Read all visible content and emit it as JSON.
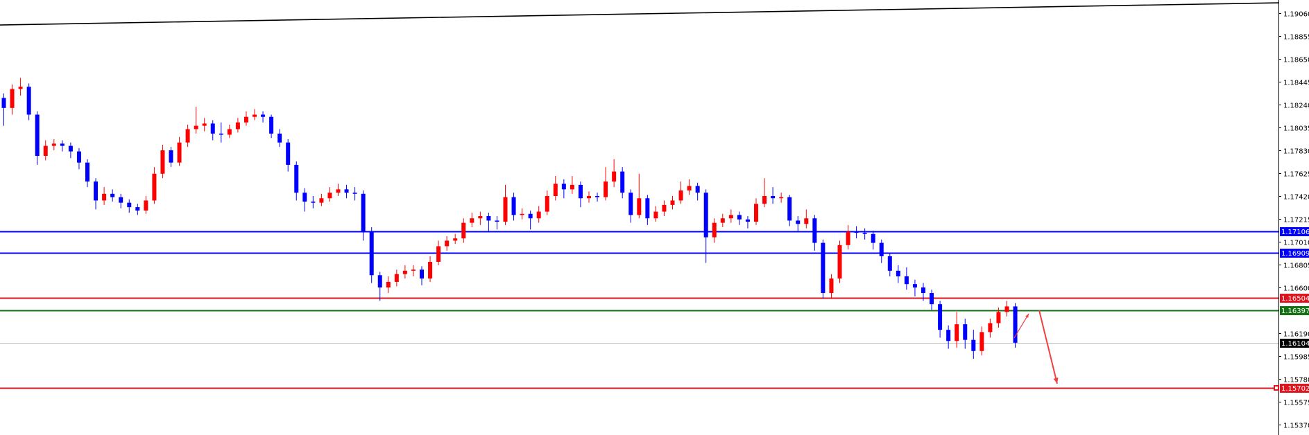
{
  "chart_data": {
    "type": "candlestick",
    "title": "",
    "xlabel": "",
    "ylabel": "",
    "ylim": [
      1.1537,
      1.1906
    ],
    "grid": false,
    "y_ticks": [
      "1.19060",
      "1.18855",
      "1.18650",
      "1.18445",
      "1.18240",
      "1.18035",
      "1.17830",
      "1.17625",
      "1.17420",
      "1.17215",
      "1.17010",
      "1.16805",
      "1.16600",
      "1.16190",
      "1.15985",
      "1.15780",
      "1.15575",
      "1.15370"
    ],
    "colors": {
      "bull": "#ff0000",
      "bear": "#0000ff",
      "doji": "#000000"
    },
    "candles": [
      [
        1.183,
        1.1834,
        1.1805,
        1.1821
      ],
      [
        1.1821,
        1.1842,
        1.1815,
        1.1838
      ],
      [
        1.1838,
        1.1848,
        1.1832,
        1.184
      ],
      [
        1.184,
        1.1843,
        1.181,
        1.1815
      ],
      [
        1.1815,
        1.1818,
        1.177,
        1.1778
      ],
      [
        1.1778,
        1.1792,
        1.1774,
        1.1787
      ],
      [
        1.1787,
        1.1793,
        1.1783,
        1.1789
      ],
      [
        1.1789,
        1.1792,
        1.1782,
        1.1787
      ],
      [
        1.1787,
        1.179,
        1.1776,
        1.1782
      ],
      [
        1.1782,
        1.1785,
        1.1766,
        1.1772
      ],
      [
        1.1772,
        1.1775,
        1.175,
        1.1755
      ],
      [
        1.1755,
        1.1758,
        1.173,
        1.1738
      ],
      [
        1.1738,
        1.175,
        1.1734,
        1.1744
      ],
      [
        1.1744,
        1.1748,
        1.1737,
        1.1741
      ],
      [
        1.1741,
        1.1744,
        1.1731,
        1.1736
      ],
      [
        1.1736,
        1.1739,
        1.1727,
        1.1732
      ],
      [
        1.1732,
        1.1735,
        1.1725,
        1.1729
      ],
      [
        1.1729,
        1.1742,
        1.1726,
        1.1738
      ],
      [
        1.1738,
        1.1768,
        1.1735,
        1.1762
      ],
      [
        1.1762,
        1.1788,
        1.1758,
        1.1783
      ],
      [
        1.1783,
        1.1786,
        1.1768,
        1.1772
      ],
      [
        1.1772,
        1.1795,
        1.1769,
        1.179
      ],
      [
        1.179,
        1.1806,
        1.1786,
        1.1802
      ],
      [
        1.1802,
        1.1822,
        1.1798,
        1.1805
      ],
      [
        1.1805,
        1.1812,
        1.18,
        1.1807
      ],
      [
        1.1807,
        1.181,
        1.1792,
        1.1798
      ],
      [
        1.1798,
        1.1808,
        1.179,
        1.1797
      ],
      [
        1.1797,
        1.1806,
        1.1794,
        1.1802
      ],
      [
        1.1802,
        1.1812,
        1.1799,
        1.1808
      ],
      [
        1.1808,
        1.1818,
        1.1805,
        1.1813
      ],
      [
        1.1813,
        1.182,
        1.181,
        1.1815
      ],
      [
        1.1815,
        1.1818,
        1.1808,
        1.1813
      ],
      [
        1.1813,
        1.1815,
        1.1794,
        1.1798
      ],
      [
        1.1798,
        1.1802,
        1.1786,
        1.179
      ],
      [
        1.179,
        1.1793,
        1.1764,
        1.177
      ],
      [
        1.177,
        1.1773,
        1.1738,
        1.1745
      ],
      [
        1.1745,
        1.1749,
        1.1728,
        1.1737
      ],
      [
        1.1737,
        1.1742,
        1.1731,
        1.1736
      ],
      [
        1.1736,
        1.1744,
        1.1733,
        1.174
      ],
      [
        1.174,
        1.175,
        1.1737,
        1.1745
      ],
      [
        1.1745,
        1.1753,
        1.1742,
        1.1748
      ],
      [
        1.1748,
        1.1752,
        1.174,
        1.1745
      ],
      [
        1.1745,
        1.175,
        1.1738,
        1.1744
      ],
      [
        1.1744,
        1.1747,
        1.1702,
        1.171
      ],
      [
        1.171,
        1.1714,
        1.1664,
        1.1671
      ],
      [
        1.1671,
        1.1674,
        1.1648,
        1.166
      ],
      [
        1.166,
        1.167,
        1.1655,
        1.1665
      ],
      [
        1.1665,
        1.1676,
        1.1661,
        1.1672
      ],
      [
        1.1672,
        1.168,
        1.1668,
        1.1675
      ],
      [
        1.1675,
        1.168,
        1.167,
        1.1676
      ],
      [
        1.1676,
        1.1679,
        1.1662,
        1.1668
      ],
      [
        1.1668,
        1.1688,
        1.1665,
        1.1683
      ],
      [
        1.1683,
        1.1702,
        1.168,
        1.1697
      ],
      [
        1.1697,
        1.1706,
        1.1693,
        1.1702
      ],
      [
        1.1702,
        1.1708,
        1.1699,
        1.1704
      ],
      [
        1.1704,
        1.1722,
        1.17,
        1.1718
      ],
      [
        1.1718,
        1.1727,
        1.1714,
        1.1722
      ],
      [
        1.1722,
        1.1728,
        1.1716,
        1.1724
      ],
      [
        1.1724,
        1.1727,
        1.171,
        1.172
      ],
      [
        1.172,
        1.1724,
        1.1712,
        1.1719
      ],
      [
        1.1719,
        1.1752,
        1.1716,
        1.1741
      ],
      [
        1.1741,
        1.1745,
        1.172,
        1.1725
      ],
      [
        1.1725,
        1.1731,
        1.1721,
        1.1726
      ],
      [
        1.1726,
        1.1729,
        1.1712,
        1.1722
      ],
      [
        1.1722,
        1.1733,
        1.1718,
        1.1728
      ],
      [
        1.1728,
        1.1747,
        1.1725,
        1.1742
      ],
      [
        1.1742,
        1.176,
        1.1738,
        1.1753
      ],
      [
        1.1753,
        1.1757,
        1.174,
        1.1748
      ],
      [
        1.1748,
        1.176,
        1.1744,
        1.1752
      ],
      [
        1.1752,
        1.1755,
        1.1732,
        1.174
      ],
      [
        1.174,
        1.1746,
        1.1736,
        1.1742
      ],
      [
        1.1742,
        1.1745,
        1.1737,
        1.1741
      ],
      [
        1.1741,
        1.1768,
        1.1738,
        1.1755
      ],
      [
        1.1755,
        1.1775,
        1.175,
        1.1764
      ],
      [
        1.1764,
        1.1768,
        1.174,
        1.1745
      ],
      [
        1.1745,
        1.1748,
        1.1718,
        1.1725
      ],
      [
        1.1725,
        1.1762,
        1.1722,
        1.174
      ],
      [
        1.174,
        1.1743,
        1.1716,
        1.1722
      ],
      [
        1.1722,
        1.1733,
        1.1719,
        1.1728
      ],
      [
        1.1728,
        1.1738,
        1.1724,
        1.1734
      ],
      [
        1.1734,
        1.1742,
        1.173,
        1.1738
      ],
      [
        1.1738,
        1.1755,
        1.1735,
        1.1747
      ],
      [
        1.1747,
        1.1757,
        1.1743,
        1.1751
      ],
      [
        1.1751,
        1.1754,
        1.1738,
        1.1745
      ],
      [
        1.1745,
        1.1748,
        1.1682,
        1.1705
      ],
      [
        1.1705,
        1.1722,
        1.17,
        1.1718
      ],
      [
        1.1718,
        1.1726,
        1.1714,
        1.1722
      ],
      [
        1.1722,
        1.173,
        1.1718,
        1.1725
      ],
      [
        1.1725,
        1.1728,
        1.1716,
        1.1721
      ],
      [
        1.1721,
        1.1724,
        1.1713,
        1.1719
      ],
      [
        1.1719,
        1.174,
        1.1716,
        1.1735
      ],
      [
        1.1735,
        1.1758,
        1.1732,
        1.1742
      ],
      [
        1.1742,
        1.175,
        1.1735,
        1.174
      ],
      [
        1.174,
        1.1745,
        1.1736,
        1.1741
      ],
      [
        1.1741,
        1.1743,
        1.1715,
        1.172
      ],
      [
        1.172,
        1.1724,
        1.171,
        1.1717
      ],
      [
        1.1717,
        1.173,
        1.1713,
        1.1722
      ],
      [
        1.1722,
        1.1725,
        1.1693,
        1.17
      ],
      [
        1.17,
        1.1703,
        1.165,
        1.1655
      ],
      [
        1.1655,
        1.1672,
        1.165,
        1.1668
      ],
      [
        1.1668,
        1.1702,
        1.1664,
        1.1698
      ],
      [
        1.1698,
        1.1716,
        1.1694,
        1.171
      ],
      [
        1.171,
        1.1715,
        1.1704,
        1.1709
      ],
      [
        1.1709,
        1.1713,
        1.1703,
        1.1708
      ],
      [
        1.1708,
        1.1711,
        1.1694,
        1.17
      ],
      [
        1.17,
        1.1703,
        1.1682,
        1.1688
      ],
      [
        1.1688,
        1.1691,
        1.167,
        1.1675
      ],
      [
        1.1675,
        1.168,
        1.1664,
        1.167
      ],
      [
        1.167,
        1.1678,
        1.1658,
        1.1663
      ],
      [
        1.1663,
        1.1667,
        1.1652,
        1.166
      ],
      [
        1.166,
        1.1664,
        1.1648,
        1.1655
      ],
      [
        1.1655,
        1.1658,
        1.164,
        1.1645
      ],
      [
        1.1645,
        1.1648,
        1.1615,
        1.1622
      ],
      [
        1.1622,
        1.1626,
        1.1605,
        1.1612
      ],
      [
        1.1612,
        1.1638,
        1.1606,
        1.1627
      ],
      [
        1.1627,
        1.1632,
        1.1605,
        1.1613
      ],
      [
        1.1613,
        1.1622,
        1.1596,
        1.1603
      ],
      [
        1.1603,
        1.1625,
        1.1599,
        1.162
      ],
      [
        1.162,
        1.1632,
        1.1615,
        1.1628
      ],
      [
        1.1628,
        1.1642,
        1.1624,
        1.1638
      ],
      [
        1.1638,
        1.1648,
        1.1634,
        1.1643
      ],
      [
        1.1643,
        1.1646,
        1.1606,
        1.16104
      ]
    ],
    "horizontal_lines": [
      {
        "price": 1.17106,
        "label": "1.17106",
        "color": "#0000ff"
      },
      {
        "price": 1.16909,
        "label": "1.16909",
        "color": "#0000ff"
      },
      {
        "price": 1.16504,
        "label": "1.16504",
        "color": "#e0141e"
      },
      {
        "price": 1.16397,
        "label": "1.16397",
        "color": "#157015"
      },
      {
        "price": 1.16104,
        "label": "1.16104",
        "color": "#c0c0c0",
        "label_bg": "#000000"
      },
      {
        "price": 1.15702,
        "label": "1.15702",
        "color": "#e0141e"
      }
    ],
    "trendline": {
      "start_price": 1.18954,
      "end_price": 1.19153,
      "color": "#000000"
    },
    "annotations": [
      {
        "type": "arrow",
        "from_price": 1.16147,
        "to_price": 1.16364,
        "color": "#f04040"
      },
      {
        "type": "arrow",
        "from_price": 1.16395,
        "to_price": 1.15737,
        "color": "#f04040"
      }
    ]
  }
}
